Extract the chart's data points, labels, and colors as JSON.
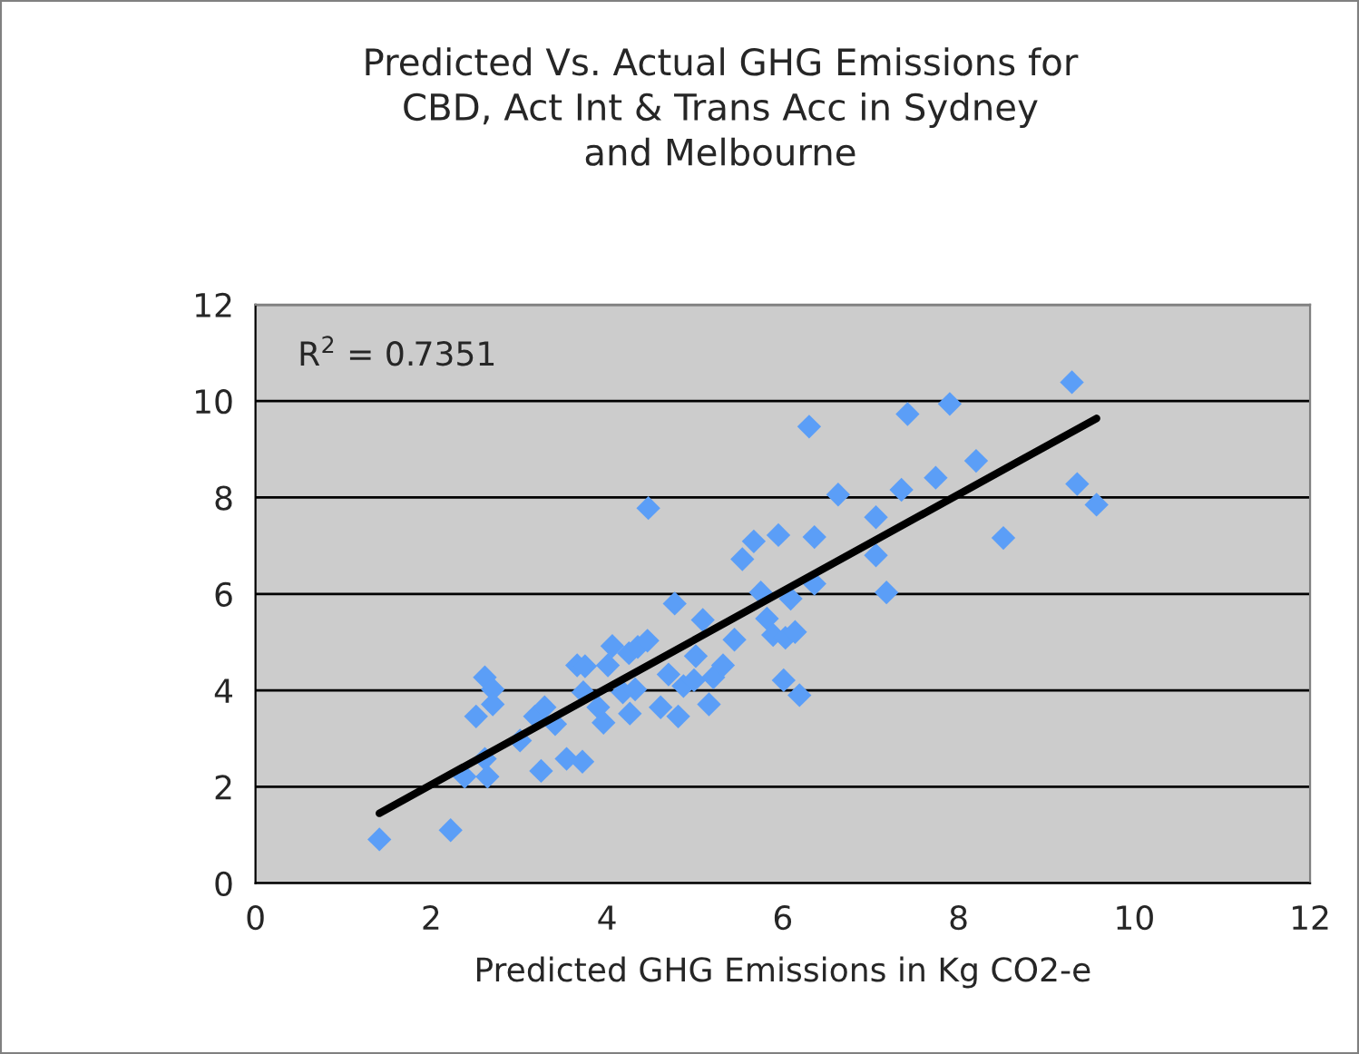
{
  "chart_data": {
    "type": "scatter",
    "title": "Predicted Vs. Actual GHG Emissions for\nCBD, Act Int & Trans Acc in Sydney\nand Melbourne",
    "xlabel": "Predicted GHG Emissions in Kg CO2-e",
    "annotations": [
      "R$^{2}$ = 0.7351"
    ],
    "xlim": [
      0,
      12
    ],
    "xticks": [
      0,
      2,
      4,
      6,
      8,
      10,
      12
    ],
    "ylim": [
      0,
      12
    ],
    "yticks": [
      0,
      2,
      4,
      6,
      8,
      10,
      12
    ],
    "grid": "y",
    "legend": false,
    "series": [
      {
        "color": "#5b9ef7",
        "marker": "diamond",
        "x": [
          1.41,
          2.22,
          2.38,
          2.64,
          2.61,
          2.51,
          2.61,
          2.7,
          2.7,
          3.01,
          3.25,
          3.18,
          3.29,
          3.41,
          3.54,
          3.72,
          3.66,
          3.75,
          3.73,
          3.9,
          3.96,
          4.01,
          4.06,
          4.25,
          4.35,
          4.46,
          4.18,
          4.26,
          4.32,
          4.47,
          4.61,
          4.7,
          4.77,
          4.81,
          4.87,
          4.99,
          5.01,
          5.09,
          5.16,
          5.21,
          5.32,
          5.45,
          5.54,
          5.67,
          5.75,
          5.82,
          5.89,
          6.01,
          6.03,
          6.19,
          6.14,
          5.95,
          6.09,
          6.3,
          6.36,
          6.36,
          6.63,
          7.06,
          7.06,
          7.18,
          7.35,
          7.42,
          7.74,
          7.9,
          8.2,
          8.51,
          9.29,
          9.35,
          9.57
        ],
        "values": [
          0.91,
          1.1,
          2.21,
          2.21,
          2.58,
          3.46,
          4.27,
          4.02,
          3.71,
          2.96,
          2.33,
          3.46,
          3.65,
          3.3,
          2.58,
          2.52,
          4.52,
          4.5,
          3.96,
          3.65,
          3.33,
          4.52,
          4.92,
          4.77,
          4.9,
          5.03,
          3.96,
          3.52,
          4.02,
          7.78,
          3.65,
          4.33,
          5.8,
          3.46,
          4.09,
          4.21,
          4.71,
          5.46,
          3.71,
          4.27,
          4.52,
          5.05,
          6.72,
          7.09,
          6.03,
          5.49,
          5.15,
          4.21,
          5.09,
          3.9,
          5.21,
          7.22,
          5.9,
          9.47,
          7.18,
          6.21,
          8.06,
          7.59,
          6.8,
          6.03,
          8.16,
          9.73,
          8.41,
          9.94,
          8.76,
          7.16,
          10.39,
          8.28,
          7.85
        ]
      },
      {
        "type": "line",
        "color": "#000000",
        "line_style": "solid",
        "marker": "none",
        "x": [
          1.41,
          9.57
        ],
        "values": [
          1.45,
          9.64
        ]
      }
    ]
  }
}
